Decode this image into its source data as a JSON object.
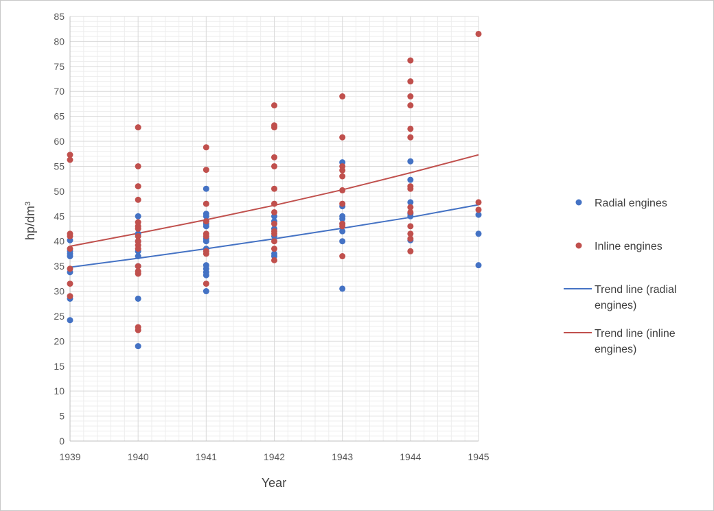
{
  "chart_data": {
    "type": "scatter",
    "xlabel": "Year",
    "ylabel": "hp/dm",
    "ylabel_superscript": "3",
    "xlim": [
      1939,
      1945
    ],
    "ylim": [
      0,
      85
    ],
    "x_ticks": [
      "1939",
      "1940",
      "1941",
      "1942",
      "1943",
      "1944",
      "1945"
    ],
    "y_ticks": [
      "0",
      "5",
      "10",
      "15",
      "20",
      "25",
      "30",
      "35",
      "40",
      "45",
      "50",
      "55",
      "60",
      "65",
      "70",
      "75",
      "80",
      "85"
    ],
    "grid": true,
    "legend_position": "right",
    "series": [
      {
        "name": "Radial engines",
        "kind": "scatter",
        "color": "#4472c4",
        "points": [
          [
            1939,
            40.2
          ],
          [
            1939,
            38.0
          ],
          [
            1939,
            37.5
          ],
          [
            1939,
            37.0
          ],
          [
            1939,
            33.8
          ],
          [
            1939,
            28.5
          ],
          [
            1939,
            24.2
          ],
          [
            1940,
            45.0
          ],
          [
            1940,
            41.5
          ],
          [
            1940,
            40.0
          ],
          [
            1940,
            38.0
          ],
          [
            1940,
            37.0
          ],
          [
            1940,
            35.0
          ],
          [
            1940,
            28.5
          ],
          [
            1940,
            19.0
          ],
          [
            1941,
            50.5
          ],
          [
            1941,
            45.5
          ],
          [
            1941,
            45.0
          ],
          [
            1941,
            44.0
          ],
          [
            1941,
            43.5
          ],
          [
            1941,
            43.0
          ],
          [
            1941,
            40.5
          ],
          [
            1941,
            40.0
          ],
          [
            1941,
            38.5
          ],
          [
            1941,
            35.2
          ],
          [
            1941,
            34.5
          ],
          [
            1941,
            33.8
          ],
          [
            1941,
            33.2
          ],
          [
            1941,
            30.0
          ],
          [
            1942,
            45.0
          ],
          [
            1942,
            44.0
          ],
          [
            1942,
            42.5
          ],
          [
            1942,
            41.0
          ],
          [
            1942,
            37.5
          ],
          [
            1942,
            37.0
          ],
          [
            1943,
            55.8
          ],
          [
            1943,
            47.0
          ],
          [
            1943,
            45.0
          ],
          [
            1943,
            44.5
          ],
          [
            1943,
            43.5
          ],
          [
            1943,
            42.0
          ],
          [
            1943,
            40.0
          ],
          [
            1943,
            30.5
          ],
          [
            1944,
            56.0
          ],
          [
            1944,
            52.3
          ],
          [
            1944,
            47.8
          ],
          [
            1944,
            45.5
          ],
          [
            1944,
            45.0
          ],
          [
            1944,
            40.2
          ],
          [
            1945,
            45.3
          ],
          [
            1945,
            41.5
          ],
          [
            1945,
            35.2
          ]
        ]
      },
      {
        "name": "Inline engines",
        "kind": "scatter",
        "color": "#c0504d",
        "points": [
          [
            1939,
            57.3
          ],
          [
            1939,
            56.3
          ],
          [
            1939,
            41.5
          ],
          [
            1939,
            41.0
          ],
          [
            1939,
            38.5
          ],
          [
            1939,
            34.5
          ],
          [
            1939,
            31.5
          ],
          [
            1939,
            29.0
          ],
          [
            1940,
            62.8
          ],
          [
            1940,
            55.0
          ],
          [
            1940,
            51.0
          ],
          [
            1940,
            48.3
          ],
          [
            1940,
            43.8
          ],
          [
            1940,
            43.0
          ],
          [
            1940,
            42.5
          ],
          [
            1940,
            41.0
          ],
          [
            1940,
            40.0
          ],
          [
            1940,
            39.2
          ],
          [
            1940,
            38.5
          ],
          [
            1940,
            35.0
          ],
          [
            1940,
            34.0
          ],
          [
            1940,
            33.5
          ],
          [
            1940,
            22.8
          ],
          [
            1940,
            22.2
          ],
          [
            1941,
            58.8
          ],
          [
            1941,
            54.3
          ],
          [
            1941,
            47.5
          ],
          [
            1941,
            44.0
          ],
          [
            1941,
            41.5
          ],
          [
            1941,
            41.0
          ],
          [
            1941,
            38.0
          ],
          [
            1941,
            37.5
          ],
          [
            1941,
            31.5
          ],
          [
            1942,
            67.2
          ],
          [
            1942,
            63.2
          ],
          [
            1942,
            62.8
          ],
          [
            1942,
            56.8
          ],
          [
            1942,
            55.0
          ],
          [
            1942,
            50.5
          ],
          [
            1942,
            47.5
          ],
          [
            1942,
            45.8
          ],
          [
            1942,
            43.5
          ],
          [
            1942,
            42.0
          ],
          [
            1942,
            41.5
          ],
          [
            1942,
            40.0
          ],
          [
            1942,
            38.5
          ],
          [
            1942,
            36.2
          ],
          [
            1943,
            69.0
          ],
          [
            1943,
            60.8
          ],
          [
            1943,
            55.0
          ],
          [
            1943,
            54.2
          ],
          [
            1943,
            53.0
          ],
          [
            1943,
            50.2
          ],
          [
            1943,
            47.5
          ],
          [
            1943,
            43.5
          ],
          [
            1943,
            43.0
          ],
          [
            1943,
            37.0
          ],
          [
            1944,
            76.2
          ],
          [
            1944,
            72.0
          ],
          [
            1944,
            69.0
          ],
          [
            1944,
            67.2
          ],
          [
            1944,
            62.5
          ],
          [
            1944,
            60.8
          ],
          [
            1944,
            51.0
          ],
          [
            1944,
            50.5
          ],
          [
            1944,
            46.8
          ],
          [
            1944,
            45.8
          ],
          [
            1944,
            43.0
          ],
          [
            1944,
            41.5
          ],
          [
            1944,
            40.5
          ],
          [
            1944,
            38.0
          ],
          [
            1945,
            81.5
          ],
          [
            1945,
            47.8
          ],
          [
            1945,
            46.3
          ]
        ]
      },
      {
        "name": "Trend line (radial engines)",
        "legend_lines": [
          "Trend line (radial",
          "engines)"
        ],
        "kind": "line",
        "color": "#4472c4",
        "points": [
          [
            1939,
            34.8
          ],
          [
            1940,
            36.6
          ],
          [
            1941,
            38.5
          ],
          [
            1942,
            40.5
          ],
          [
            1943,
            42.6
          ],
          [
            1944,
            44.8
          ],
          [
            1945,
            47.3
          ]
        ]
      },
      {
        "name": "Trend line (inline engines)",
        "legend_lines": [
          "Trend line (inline",
          "engines)"
        ],
        "kind": "line",
        "color": "#c0504d",
        "points": [
          [
            1939,
            39.0
          ],
          [
            1940,
            41.6
          ],
          [
            1941,
            44.3
          ],
          [
            1942,
            47.2
          ],
          [
            1943,
            50.3
          ],
          [
            1944,
            53.7
          ],
          [
            1945,
            57.3
          ]
        ]
      }
    ]
  }
}
